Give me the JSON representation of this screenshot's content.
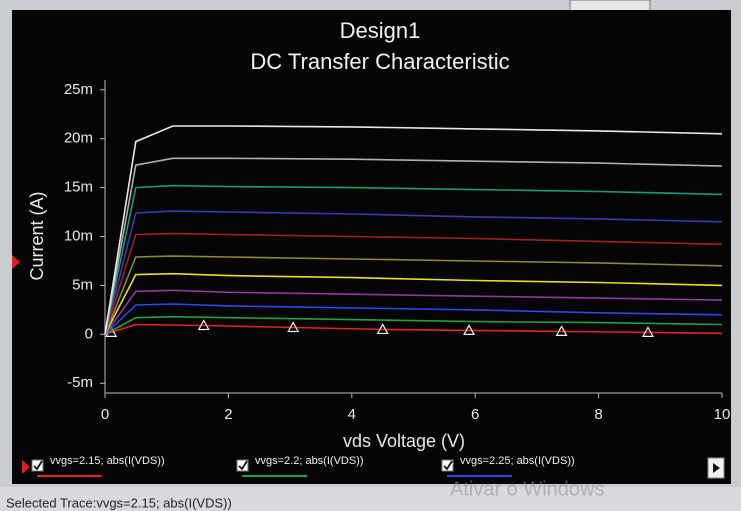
{
  "chart_data": {
    "type": "line",
    "title": "Design1",
    "subtitle": "DC Transfer Characteristic",
    "xlabel": "vds Voltage (V)",
    "ylabel": "Current (A)",
    "x": [
      0,
      0.5,
      1.1,
      2,
      4,
      6,
      8,
      10
    ],
    "xlim": [
      0,
      10
    ],
    "xticks": [
      0,
      2,
      4,
      6,
      8,
      10
    ],
    "ylim": [
      -0.006,
      0.026
    ],
    "yticks": [
      {
        "value": -0.005,
        "label": "-5m"
      },
      0,
      {
        "value": 0.005,
        "label": "5m"
      },
      {
        "value": 0.01,
        "label": "10m"
      },
      {
        "value": 0.015,
        "label": "15m"
      },
      {
        "value": 0.02,
        "label": "20m"
      },
      {
        "value": 0.025,
        "label": "25m"
      }
    ],
    "series": [
      {
        "name": "vvgs=2.15; abs(I(VDS))",
        "color": "#e82020",
        "markers": "triangle",
        "x": [
          0,
          0.1,
          0.5,
          1.6,
          3.05,
          4.5,
          5.9,
          7.4,
          8.8,
          10
        ],
        "values": [
          0,
          0.0002,
          0.001,
          0.0009,
          0.0007,
          0.0005,
          0.0004,
          0.0003,
          0.0002,
          0.0001
        ]
      },
      {
        "name": "vvgs=2.2; abs(I(VDS))",
        "color": "#20a040",
        "values": [
          0,
          0.0017,
          0.0018,
          0.0017,
          0.0015,
          0.0013,
          0.0012,
          0.001
        ]
      },
      {
        "name": "vvgs=2.25; abs(I(VDS))",
        "color": "#2848e8",
        "values": [
          0,
          0.003,
          0.0031,
          0.0029,
          0.0027,
          0.0025,
          0.0022,
          0.002
        ]
      },
      {
        "color": "#8a3a9a",
        "values": [
          0,
          0.0044,
          0.0045,
          0.0043,
          0.0041,
          0.0039,
          0.0037,
          0.0035
        ]
      },
      {
        "color": "#e8e020",
        "values": [
          0,
          0.0061,
          0.0062,
          0.006,
          0.0058,
          0.0055,
          0.0053,
          0.005
        ]
      },
      {
        "color": "#8a8a30",
        "values": [
          0,
          0.0079,
          0.008,
          0.0079,
          0.0077,
          0.0075,
          0.0073,
          0.007
        ]
      },
      {
        "color": "#a02020",
        "values": [
          0,
          0.0102,
          0.0103,
          0.0102,
          0.01,
          0.0098,
          0.0095,
          0.0092
        ]
      },
      {
        "color": "#3a3ab0",
        "values": [
          0,
          0.0124,
          0.0126,
          0.0125,
          0.0123,
          0.012,
          0.0118,
          0.0115
        ]
      },
      {
        "color": "#1a9a7a",
        "values": [
          0,
          0.015,
          0.0152,
          0.0151,
          0.015,
          0.0148,
          0.0146,
          0.0143
        ]
      },
      {
        "color": "#b0b0b0",
        "values": [
          0,
          0.0173,
          0.018,
          0.018,
          0.0179,
          0.0177,
          0.0175,
          0.0172
        ]
      },
      {
        "color": "#e8e8e8",
        "values": [
          0,
          0.0197,
          0.0213,
          0.0213,
          0.0212,
          0.021,
          0.0208,
          0.0205
        ]
      }
    ]
  },
  "status": "Selected Trace:vvgs=2.15; abs(I(VDS))",
  "watermark": "Ativar o Windows"
}
